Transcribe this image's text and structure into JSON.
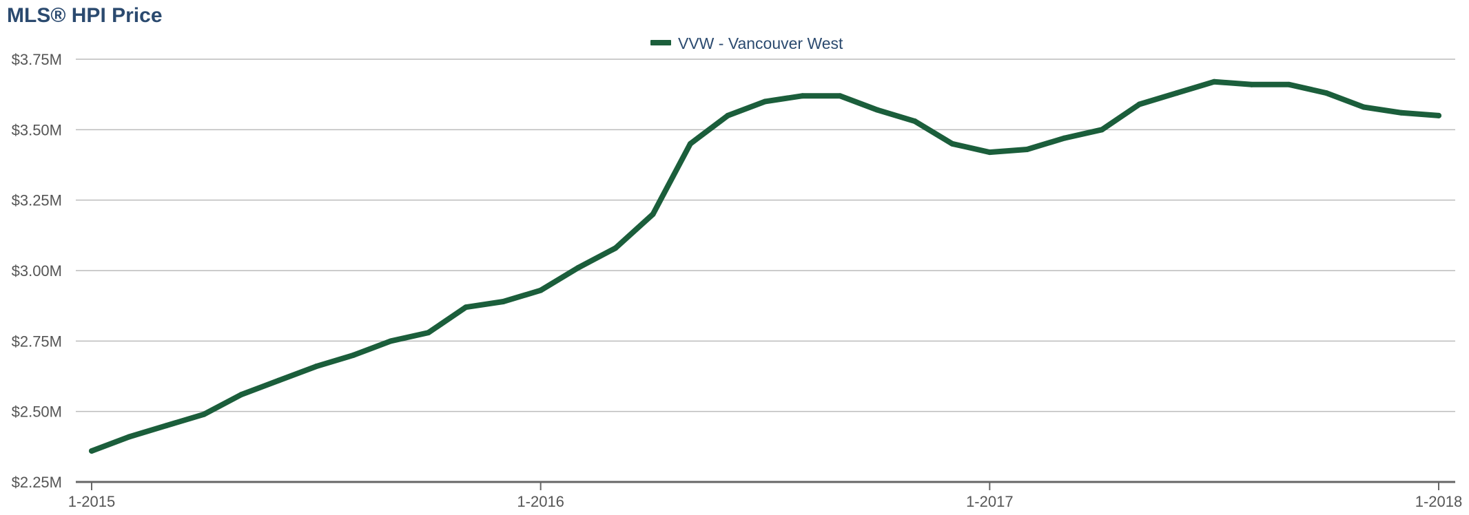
{
  "chart_data": {
    "type": "line",
    "title": "MLS® HPI Price",
    "xlabel": "",
    "ylabel": "",
    "x_tick_labels": [
      "1-2015",
      "1-2016",
      "1-2017",
      "1-2018"
    ],
    "y_tick_labels": [
      "$2.25M",
      "$2.50M",
      "$2.75M",
      "$3.00M",
      "$3.25M",
      "$3.50M",
      "$3.75M"
    ],
    "ylim": [
      2.25,
      3.75
    ],
    "y_unit": "millions of dollars",
    "grid": true,
    "legend_position": "top-center",
    "colors": {
      "series": "#1b5e3b",
      "grid": "#bbbbbb",
      "axis": "#666666",
      "title": "#2b4a6f"
    },
    "x": [
      "2015-01",
      "2015-02",
      "2015-03",
      "2015-04",
      "2015-05",
      "2015-06",
      "2015-07",
      "2015-08",
      "2015-09",
      "2015-10",
      "2015-11",
      "2015-12",
      "2016-01",
      "2016-02",
      "2016-03",
      "2016-04",
      "2016-05",
      "2016-06",
      "2016-07",
      "2016-08",
      "2016-09",
      "2016-10",
      "2016-11",
      "2016-12",
      "2017-01",
      "2017-02",
      "2017-03",
      "2017-04",
      "2017-05",
      "2017-06",
      "2017-07",
      "2017-08",
      "2017-09",
      "2017-10",
      "2017-11",
      "2017-12",
      "2018-01"
    ],
    "series": [
      {
        "name": "VVW - Vancouver West",
        "values": [
          2.36,
          2.41,
          2.45,
          2.49,
          2.56,
          2.61,
          2.66,
          2.7,
          2.75,
          2.78,
          2.87,
          2.89,
          2.93,
          3.01,
          3.08,
          3.2,
          3.45,
          3.55,
          3.6,
          3.62,
          3.62,
          3.57,
          3.53,
          3.45,
          3.42,
          3.43,
          3.47,
          3.5,
          3.59,
          3.63,
          3.67,
          3.66,
          3.66,
          3.63,
          3.58,
          3.56,
          3.55
        ]
      }
    ]
  }
}
